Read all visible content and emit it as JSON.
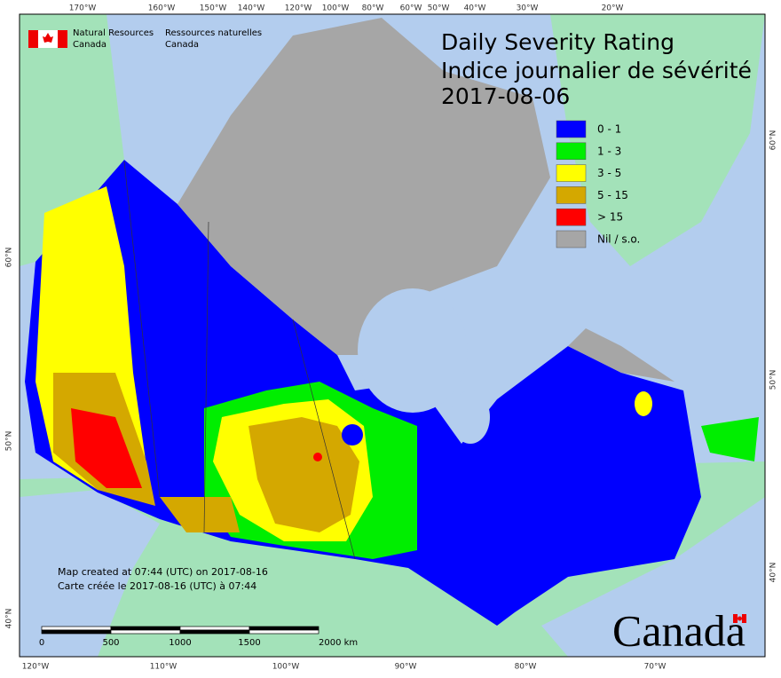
{
  "title": {
    "line1": "Daily Severity Rating",
    "line2": "Indice journalier de sévérité",
    "date": "2017-08-06"
  },
  "agency": {
    "en1": "Natural Resources",
    "en2": "Canada",
    "fr1": "Ressources naturelles",
    "fr2": "Canada"
  },
  "legend": [
    {
      "label": "0 - 1",
      "color": "#0000ff"
    },
    {
      "label": "1 - 3",
      "color": "#00ee00"
    },
    {
      "label": "3 - 5",
      "color": "#ffff00"
    },
    {
      "label": "5 - 15",
      "color": "#d4a800"
    },
    {
      "label": "> 15",
      "color": "#ff0000"
    },
    {
      "label": "Nil / s.o.",
      "color": "#a6a6a6"
    }
  ],
  "graticule": {
    "top": [
      "170°W",
      "160°W",
      "150°W",
      "140°W",
      "120°W",
      "100°W",
      "80°W",
      "60°W",
      "50°W",
      "40°W",
      "30°W",
      "20°W"
    ],
    "bottom": [
      "120°W",
      "110°W",
      "100°W",
      "90°W",
      "80°W",
      "70°W"
    ],
    "left": [
      "60°N",
      "50°N",
      "40°N"
    ],
    "right": [
      "60°N",
      "50°N",
      "40°N"
    ]
  },
  "notes": {
    "created_en": "Map created at 07:44 (UTC) on 2017-08-16",
    "created_fr": "Carte créée le 2017-08-16 (UTC) à 07:44"
  },
  "scale_bar": [
    "0",
    "500",
    "1000",
    "1500",
    "2000 km"
  ],
  "wordmark": "Canada"
}
